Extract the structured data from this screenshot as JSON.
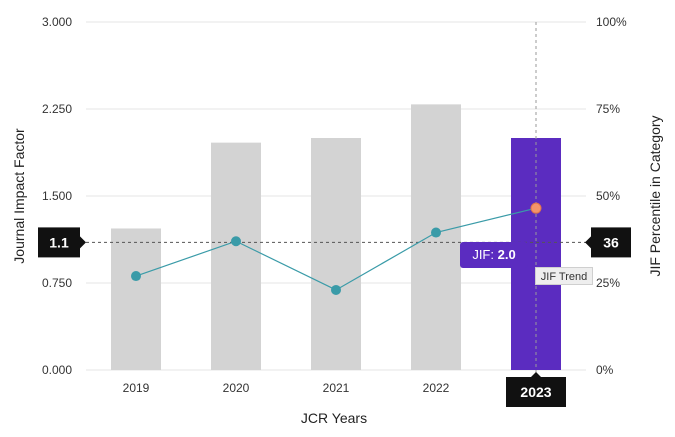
{
  "chart_data": {
    "type": "bar+line",
    "categories": [
      "2019",
      "2020",
      "2021",
      "2022",
      "2023"
    ],
    "series": [
      {
        "type": "bar",
        "axis": "left",
        "values": [
          1.22,
          1.96,
          2.0,
          2.29,
          2.0
        ],
        "highlight_index": 4
      },
      {
        "type": "line",
        "axis": "right",
        "values": [
          27,
          37,
          23,
          39.5,
          46.5
        ]
      }
    ],
    "xlabel": "JCR Years",
    "ylabel_left": "Journal Impact Factor",
    "ylabel_right": "JIF Percentile in Category",
    "y_left": {
      "min": 0,
      "max": 3.0,
      "ticks": [
        "0.000",
        "0.750",
        "1.500",
        "2.250",
        "3.000"
      ]
    },
    "y_right": {
      "min": 0,
      "max": 100,
      "ticks": [
        "0%",
        "25%",
        "50%",
        "75%",
        "100%"
      ]
    },
    "grid": true,
    "crosshair": {
      "left_value": 1.1,
      "left_label": "1.1",
      "right_label": "36",
      "x_label": "2023"
    },
    "tooltip": {
      "label": "JIF:",
      "value": "2.0"
    },
    "trend_label": "JIF Trend",
    "colors": {
      "bar": "#d3d3d3",
      "bar_highlight": "#5b2cc0",
      "line": "#3a9ba8",
      "point": "#3a9ba8",
      "point_highlight": "#f4946b",
      "label_bg": "#111111"
    }
  }
}
